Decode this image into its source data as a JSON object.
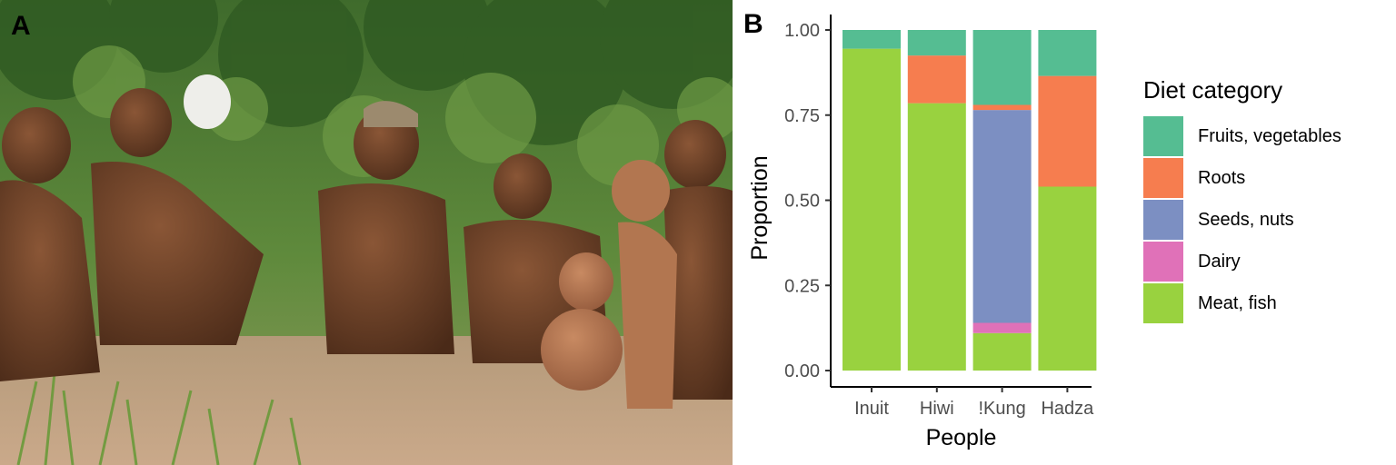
{
  "panels": {
    "a_label": "A",
    "b_label": "B"
  },
  "chart_data": {
    "type": "bar",
    "stacked": true,
    "xlabel": "People",
    "ylabel": "Proportion",
    "categories": [
      "Inuit",
      "Hiwi",
      "!Kung",
      "Hadza"
    ],
    "ylim": [
      0,
      1
    ],
    "yticks": [
      "0.00",
      "0.25",
      "0.50",
      "0.75",
      "1.00"
    ],
    "legend": {
      "title": "Diet category",
      "position": "right"
    },
    "series": [
      {
        "name": "Meat, fish",
        "color": "#99d23f",
        "values": [
          0.945,
          0.785,
          0.11,
          0.54
        ]
      },
      {
        "name": "Dairy",
        "color": "#e071b8",
        "values": [
          0,
          0,
          0.03,
          0
        ]
      },
      {
        "name": "Seeds, nuts",
        "color": "#7c8fc2",
        "values": [
          0,
          0,
          0.625,
          0
        ]
      },
      {
        "name": "Roots",
        "color": "#f67d4f",
        "values": [
          0,
          0.14,
          0.015,
          0.325
        ]
      },
      {
        "name": "Fruits, vegetables",
        "color": "#55bd92",
        "values": [
          0.055,
          0.075,
          0.22,
          0.135
        ]
      }
    ],
    "legend_order": [
      "Fruits, vegetables",
      "Roots",
      "Seeds, nuts",
      "Dairy",
      "Meat, fish"
    ],
    "grid": false
  }
}
